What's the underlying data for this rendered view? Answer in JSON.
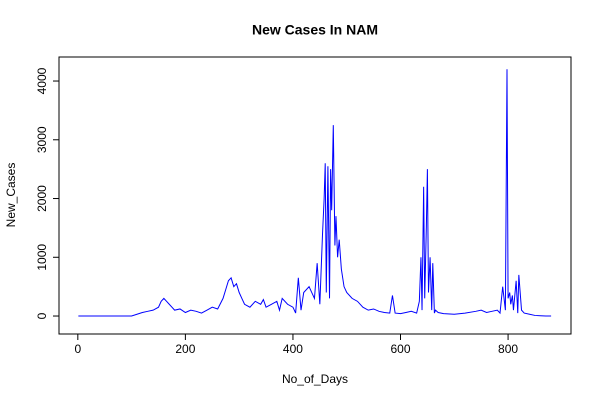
{
  "chart_data": {
    "type": "line",
    "title": "New Cases In NAM",
    "x_label": "No_of_Days",
    "y_label": "New_Cases",
    "x": [
      1,
      50,
      100,
      110,
      120,
      130,
      140,
      150,
      155,
      160,
      165,
      170,
      175,
      180,
      190,
      200,
      210,
      220,
      230,
      240,
      250,
      260,
      270,
      275,
      280,
      285,
      290,
      295,
      300,
      305,
      310,
      320,
      330,
      340,
      345,
      350,
      360,
      370,
      375,
      380,
      390,
      400,
      405,
      410,
      415,
      420,
      430,
      440,
      445,
      450,
      455,
      458,
      460,
      462,
      465,
      468,
      470,
      472,
      475,
      478,
      480,
      483,
      486,
      490,
      495,
      500,
      510,
      520,
      530,
      540,
      550,
      560,
      570,
      580,
      585,
      590,
      600,
      610,
      620,
      630,
      635,
      638,
      640,
      643,
      645,
      648,
      650,
      652,
      655,
      658,
      660,
      663,
      665,
      670,
      680,
      700,
      720,
      740,
      750,
      760,
      770,
      780,
      785,
      790,
      795,
      798,
      800,
      803,
      805,
      808,
      810,
      815,
      818,
      820,
      825,
      830,
      840,
      850,
      860,
      870,
      880
    ],
    "series": [
      {
        "name": "New_Cases",
        "color": "#0000ff",
        "values": [
          0,
          0,
          0,
          30,
          60,
          80,
          100,
          150,
          250,
          300,
          250,
          200,
          150,
          100,
          120,
          60,
          100,
          80,
          50,
          100,
          150,
          120,
          300,
          450,
          600,
          650,
          500,
          550,
          400,
          300,
          200,
          150,
          250,
          200,
          280,
          150,
          200,
          250,
          100,
          300,
          200,
          150,
          50,
          650,
          100,
          400,
          500,
          300,
          900,
          200,
          1400,
          2000,
          2600,
          400,
          2550,
          300,
          2500,
          1800,
          3250,
          1200,
          1700,
          1000,
          1300,
          800,
          500,
          400,
          300,
          250,
          150,
          100,
          120,
          80,
          60,
          50,
          350,
          50,
          40,
          60,
          80,
          50,
          250,
          1000,
          100,
          2200,
          300,
          1500,
          2500,
          400,
          1000,
          100,
          900,
          50,
          100,
          60,
          40,
          30,
          50,
          80,
          100,
          60,
          80,
          100,
          50,
          500,
          100,
          4200,
          300,
          400,
          200,
          350,
          100,
          600,
          50,
          700,
          100,
          50,
          30,
          10,
          5,
          0,
          0
        ]
      }
    ],
    "xlim": [
      -35,
      917
    ],
    "ylim": [
      -306,
      4409
    ],
    "xticks": [
      0,
      200,
      400,
      600,
      800
    ],
    "yticks": [
      0,
      1000,
      2000,
      3000,
      4000
    ]
  }
}
